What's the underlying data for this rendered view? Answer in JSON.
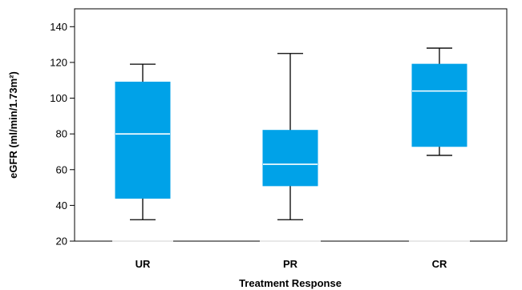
{
  "chart_data": {
    "type": "box",
    "xlabel": "Treatment Response",
    "ylabel": "eGFR (ml/min/1.73m²)",
    "ylim": [
      20,
      150
    ],
    "yticks": [
      20,
      40,
      60,
      80,
      100,
      120,
      140
    ],
    "grid": false,
    "legend": "none",
    "box_color": "#00A2E8",
    "median_color": "#ffffff",
    "categories": [
      "UR",
      "PR",
      "CR"
    ],
    "boxes": [
      {
        "category": "UR",
        "min": 32,
        "q1": 44,
        "median": 80,
        "q3": 109,
        "max": 119
      },
      {
        "category": "PR",
        "min": 32,
        "q1": 51,
        "median": 63,
        "q3": 82,
        "max": 125
      },
      {
        "category": "CR",
        "min": 68,
        "q1": 73,
        "median": 104,
        "q3": 119,
        "max": 128
      }
    ]
  }
}
